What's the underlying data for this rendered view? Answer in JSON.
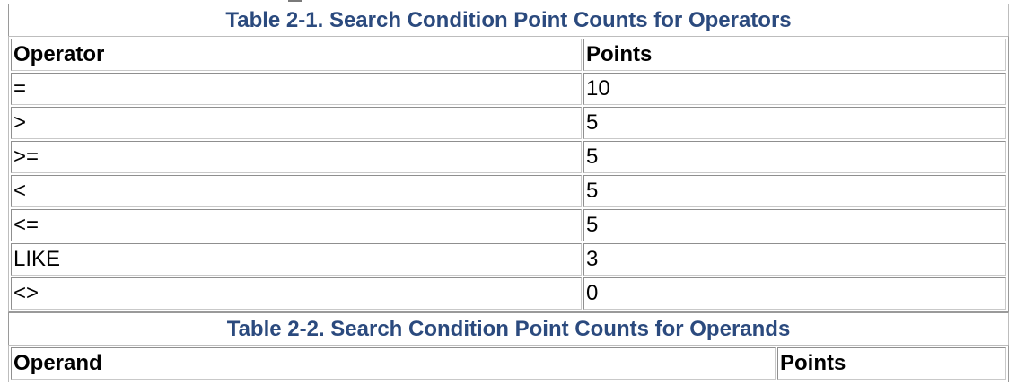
{
  "table1": {
    "caption": "Table 2-1. Search Condition Point Counts for Operators",
    "columns": [
      "Operator",
      "Points"
    ],
    "rows": [
      [
        "=",
        "10"
      ],
      [
        ">",
        "5"
      ],
      [
        ">=",
        "5"
      ],
      [
        "<",
        "5"
      ],
      [
        "<=",
        "5"
      ],
      [
        "LIKE",
        "3"
      ],
      [
        "<>",
        "0"
      ]
    ]
  },
  "table2": {
    "caption": "Table 2-2. Search Condition Point Counts for Operands",
    "columns": [
      "Operand",
      "Points"
    ]
  },
  "colors": {
    "caption_text": "#2b4a7e",
    "border": "#8f8f8f",
    "background": "#ffffff"
  }
}
